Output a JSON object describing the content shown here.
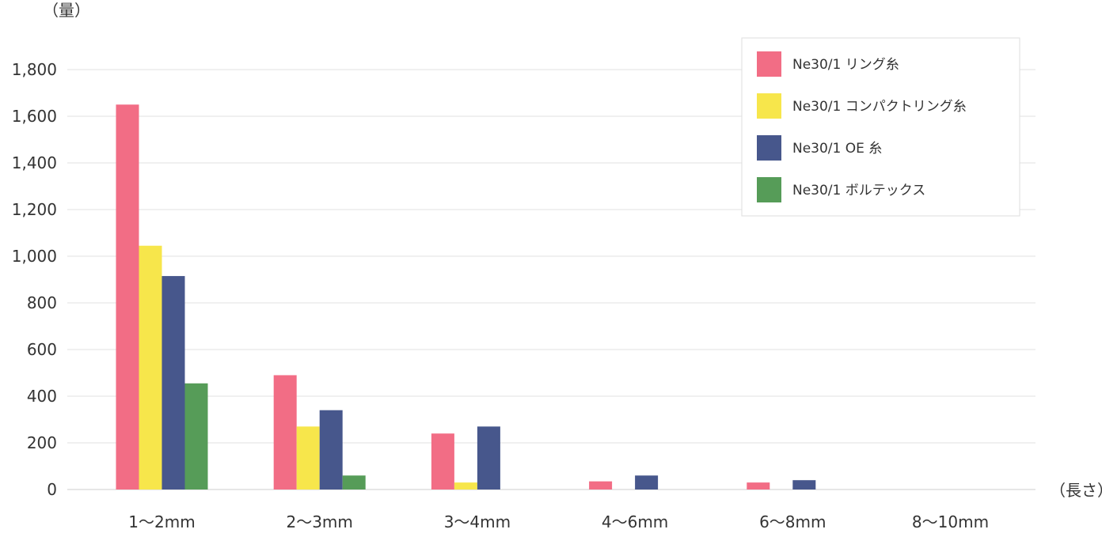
{
  "chart_data": {
    "type": "bar",
    "ylabel": "（量）",
    "xlabel": "（長さ）",
    "categories": [
      "1～2mm",
      "2～3mm",
      "3～4mm",
      "4～6mm",
      "6～8mm",
      "8～10mm"
    ],
    "ylim": [
      0,
      1900
    ],
    "yticks": [
      0,
      200,
      400,
      600,
      800,
      1000,
      1200,
      1400,
      1600,
      1800
    ],
    "ytick_labels": [
      "0",
      "200",
      "400",
      "600",
      "800",
      "1,000",
      "1,200",
      "1,400",
      "1,600",
      "1,800"
    ],
    "grid": true,
    "legend_position": "top-right",
    "series": [
      {
        "name": "Ne30/1 リング糸",
        "color": "#f26d85",
        "values": [
          1650,
          490,
          240,
          35,
          30,
          0
        ]
      },
      {
        "name": "Ne30/1 コンパクトリング糸",
        "color": "#f7e64b",
        "values": [
          1045,
          270,
          30,
          0,
          0,
          0
        ]
      },
      {
        "name": "Ne30/1 OE 糸",
        "color": "#47578c",
        "values": [
          915,
          340,
          270,
          60,
          40,
          0
        ]
      },
      {
        "name": "Ne30/1 ボルテックス",
        "color": "#569c58",
        "values": [
          455,
          60,
          0,
          0,
          0,
          0
        ]
      }
    ]
  }
}
